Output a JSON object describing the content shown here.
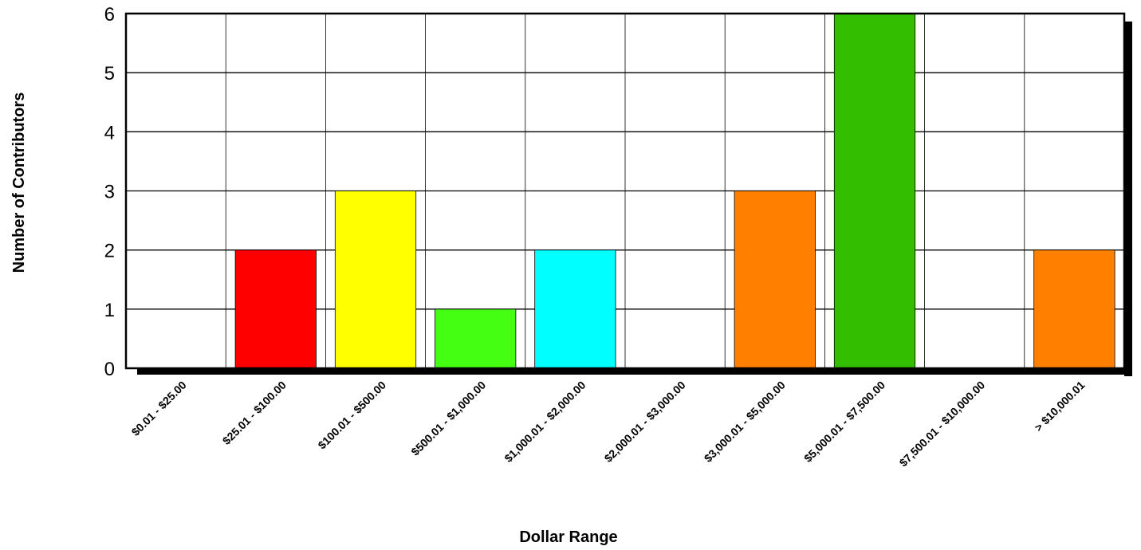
{
  "chart_data": {
    "type": "bar",
    "title": "",
    "xlabel": "Dollar Range",
    "ylabel": "Number of Contributors",
    "ylim": [
      0,
      6
    ],
    "yticks": [
      0,
      1,
      2,
      3,
      4,
      5,
      6
    ],
    "grid": true,
    "legend": "none",
    "categories": [
      "$0.01 - $25.00",
      "$25.01 - $100.00",
      "$100.01 - $500.00",
      "$500.01 - $1,000.00",
      "$1,000.01 - $2,000.00",
      "$2,000.01 - $3,000.00",
      "$3,000.01 - $5,000.00",
      "$5,000.01 - $7,500.00",
      "$7,500.01 - $10,000.00",
      "> $10,000.01"
    ],
    "values": [
      0,
      2,
      3,
      1,
      2,
      0,
      3,
      6,
      0,
      2
    ],
    "colors": [
      "#FF0000",
      "#FF0000",
      "#FFFF00",
      "#44FF11",
      "#00FFFF",
      "#FF8000",
      "#FF8000",
      "#33BF00",
      "#FF8000",
      "#FF8000"
    ]
  }
}
